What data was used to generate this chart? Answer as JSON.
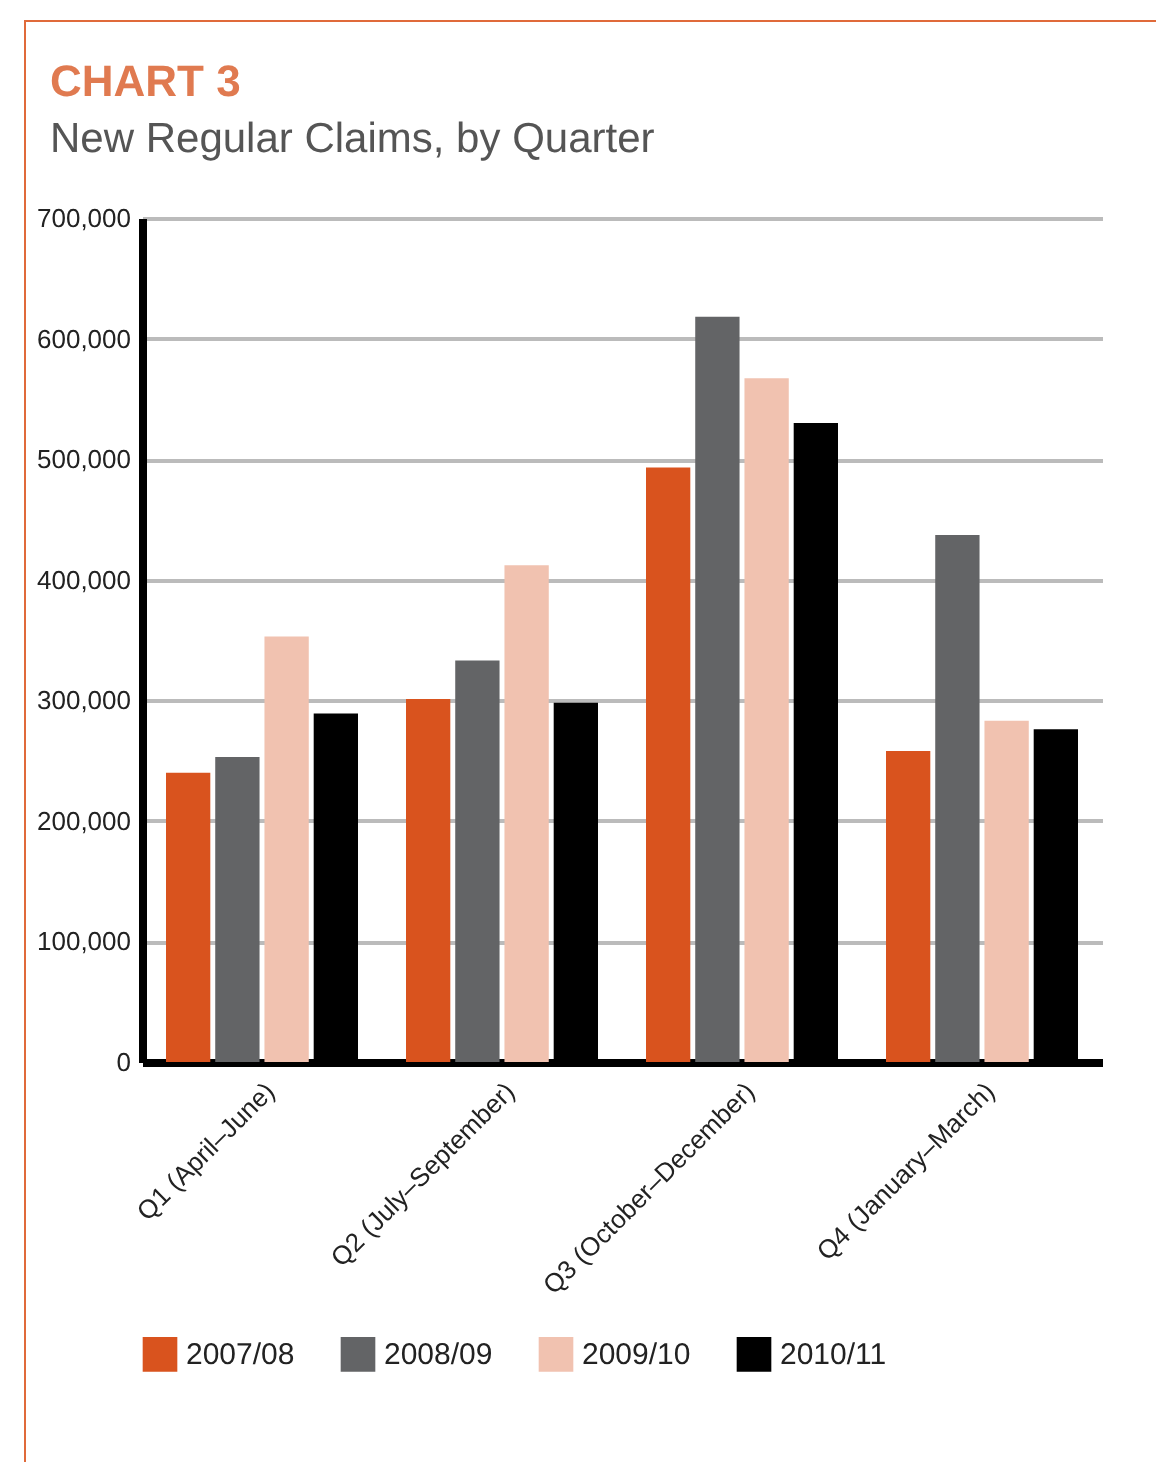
{
  "chart_data": {
    "type": "bar",
    "title": "CHART 3",
    "subtitle": "New Regular Claims, by Quarter",
    "categories": [
      "Q1 (April–June)",
      "Q2 (July–September)",
      "Q3 (October–December)",
      "Q4 (January–March)"
    ],
    "series": [
      {
        "name": "2007/08",
        "color": "#d9531e",
        "values": [
          240000,
          301000,
          493000,
          258000
        ]
      },
      {
        "name": "2008/09",
        "color": "#636466",
        "values": [
          253000,
          333000,
          618000,
          437000
        ]
      },
      {
        "name": "2009/10",
        "color": "#f1c2b0",
        "values": [
          353000,
          412000,
          567000,
          283000
        ]
      },
      {
        "name": "2010/11",
        "color": "#000000",
        "values": [
          289000,
          298000,
          530000,
          276000
        ]
      }
    ],
    "ylim": [
      0,
      700000
    ],
    "yticks": [
      0,
      {
        "value": 100000,
        "label": "100,000"
      },
      {
        "value": 200000,
        "label": "200,000"
      },
      {
        "value": 300000,
        "label": "300,000"
      },
      {
        "value": 400000,
        "label": "400,000"
      },
      {
        "value": 500000,
        "label": "500,000"
      },
      {
        "value": 600000,
        "label": "600,000"
      },
      {
        "value": 700000,
        "label": "700,000"
      }
    ],
    "grid": "y",
    "legend": "bottom"
  }
}
